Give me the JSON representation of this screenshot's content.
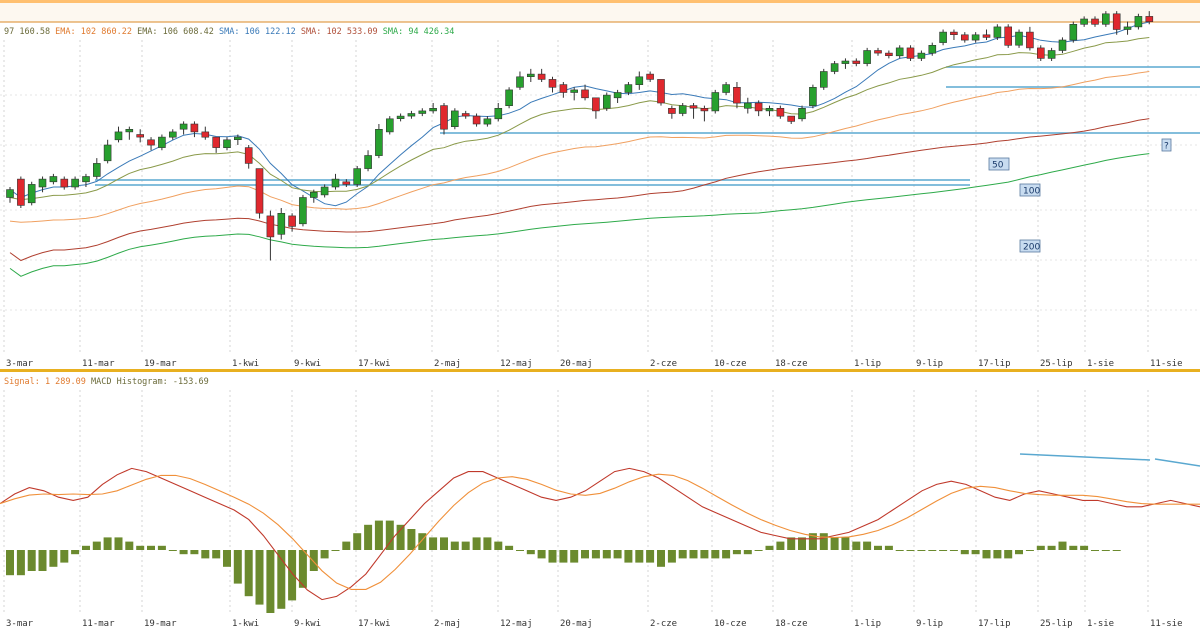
{
  "indicator_bar": {
    "items": [
      {
        "text": "97 160.58",
        "color": "#6b6b3a"
      },
      {
        "text": "EMA: 102 860.22",
        "color": "#e07a2e"
      },
      {
        "text": "EMA: 106 608.42",
        "color": "#6b6b3a"
      },
      {
        "text": "SMA: 106 122.12",
        "color": "#3a7ab8"
      },
      {
        "text": "SMA: 102 533.09",
        "color": "#b0503a"
      },
      {
        "text": "SMA: 94 426.34",
        "color": "#2eaa4a"
      }
    ]
  },
  "macd_bar": {
    "items": [
      {
        "text": "Signal: 1 289.09",
        "color": "#e07a2e"
      },
      {
        "text": "MACD Histogram: -153.69",
        "color": "#6b6b3a"
      }
    ]
  },
  "ma_labels": [
    "50",
    "100",
    "200",
    "?"
  ],
  "colors": {
    "up": "#27a02e",
    "down": "#e0282e",
    "resistance": "#5aa8d0",
    "histogram": "#6b8a2e",
    "macd": "#c0392b",
    "signal": "#f0903a",
    "ema_fast": "#f0a060",
    "ema_slow": "#8a9a4a",
    "sma_blue": "#3a7ab8",
    "sma_red": "#b04030",
    "sma_green": "#2eaa4a"
  },
  "chart_data": {
    "type": "candlestick",
    "x_ticks": [
      "3-mar",
      "11-mar",
      "19-mar",
      "1-kwi",
      "9-kwi",
      "17-kwi",
      "2-maj",
      "12-maj",
      "20-maj",
      "2-cze",
      "10-cze",
      "18-cze",
      "1-lip",
      "9-lip",
      "17-lip",
      "25-lip",
      "1-sie",
      "11-sie"
    ],
    "y_range": [
      60,
      180
    ],
    "candles": [
      [
        120,
        124,
        118,
        123
      ],
      [
        127,
        128,
        116,
        117
      ],
      [
        118,
        126,
        117,
        125
      ],
      [
        124,
        128,
        122,
        127
      ],
      [
        126,
        129,
        125,
        128
      ],
      [
        127,
        128,
        123,
        124
      ],
      [
        124,
        128,
        123,
        127
      ],
      [
        126,
        129,
        124,
        128
      ],
      [
        128,
        135,
        127,
        133
      ],
      [
        134,
        142,
        133,
        140
      ],
      [
        142,
        147,
        141,
        145
      ],
      [
        145,
        147,
        142,
        146
      ],
      [
        144,
        146,
        141,
        143
      ],
      [
        142,
        143,
        138,
        140
      ],
      [
        139,
        144,
        138,
        143
      ],
      [
        143,
        146,
        142,
        145
      ],
      [
        146,
        149,
        144,
        148
      ],
      [
        148,
        149,
        143,
        145
      ],
      [
        145,
        147,
        142,
        143
      ],
      [
        143,
        143,
        137,
        139
      ],
      [
        139,
        143,
        138,
        142
      ],
      [
        142,
        144,
        140,
        143
      ],
      [
        139,
        140,
        131,
        133
      ],
      [
        131,
        131,
        112,
        114
      ],
      [
        113,
        115,
        96,
        105
      ],
      [
        106,
        116,
        104,
        114
      ],
      [
        113,
        114,
        107,
        109
      ],
      [
        110,
        121,
        109,
        120
      ],
      [
        120,
        123,
        118,
        122
      ],
      [
        121,
        125,
        120,
        124
      ],
      [
        124,
        129,
        123,
        127
      ],
      [
        126,
        127,
        124,
        125
      ],
      [
        125,
        132,
        124,
        131
      ],
      [
        131,
        138,
        130,
        136
      ],
      [
        136,
        148,
        135,
        146
      ],
      [
        145,
        151,
        144,
        150
      ],
      [
        150,
        152,
        149,
        151
      ],
      [
        151,
        153,
        150,
        152
      ],
      [
        152,
        154,
        151,
        153
      ],
      [
        153,
        156,
        152,
        154
      ],
      [
        155,
        156,
        144,
        146
      ],
      [
        147,
        154,
        146,
        153
      ],
      [
        152,
        153,
        150,
        151
      ],
      [
        151,
        152,
        147,
        148
      ],
      [
        148,
        151,
        147,
        150
      ],
      [
        150,
        156,
        149,
        154
      ],
      [
        155,
        162,
        154,
        161
      ],
      [
        162,
        168,
        161,
        166
      ],
      [
        166,
        169,
        164,
        167
      ],
      [
        167,
        169,
        164,
        165
      ],
      [
        165,
        166,
        160,
        162
      ],
      [
        163,
        164,
        158,
        160
      ],
      [
        160,
        162,
        157,
        161
      ],
      [
        161,
        163,
        157,
        158
      ],
      [
        158,
        158,
        150,
        153
      ],
      [
        154,
        160,
        153,
        159
      ],
      [
        158,
        161,
        156,
        160
      ],
      [
        160,
        164,
        159,
        163
      ],
      [
        163,
        168,
        161,
        166
      ],
      [
        167,
        168,
        164,
        165
      ],
      [
        165,
        165,
        155,
        156
      ],
      [
        154,
        155,
        150,
        152
      ],
      [
        152,
        156,
        151,
        155
      ],
      [
        155,
        156,
        150,
        154
      ],
      [
        154,
        155,
        149,
        153
      ],
      [
        153,
        161,
        152,
        160
      ],
      [
        160,
        164,
        159,
        163
      ],
      [
        162,
        164,
        154,
        156
      ],
      [
        154,
        158,
        152,
        156
      ],
      [
        156,
        157,
        151,
        153
      ],
      [
        153,
        155,
        151,
        154
      ],
      [
        154,
        155,
        150,
        151
      ],
      [
        151,
        151,
        148,
        149
      ],
      [
        150,
        155,
        149,
        154
      ],
      [
        155,
        163,
        154,
        162
      ],
      [
        162,
        169,
        161,
        168
      ],
      [
        168,
        172,
        167,
        171
      ],
      [
        171,
        173,
        169,
        172
      ],
      [
        172,
        173,
        170,
        171
      ],
      [
        171,
        177,
        170,
        176
      ],
      [
        176,
        177,
        174,
        175
      ],
      [
        175,
        176,
        173,
        174
      ],
      [
        174,
        178,
        173,
        177
      ],
      [
        177,
        178,
        172,
        173
      ],
      [
        173,
        176,
        172,
        175
      ],
      [
        175,
        179,
        174,
        178
      ],
      [
        179,
        184,
        178,
        183
      ],
      [
        183,
        184,
        180,
        182
      ],
      [
        182,
        183,
        179,
        180
      ],
      [
        180,
        183,
        179,
        182
      ],
      [
        182,
        184,
        180,
        181
      ],
      [
        181,
        186,
        180,
        185
      ],
      [
        185,
        186,
        177,
        178
      ],
      [
        178,
        184,
        177,
        183
      ],
      [
        183,
        185,
        176,
        177
      ],
      [
        177,
        178,
        172,
        173
      ],
      [
        173,
        177,
        172,
        176
      ],
      [
        176,
        181,
        175,
        180
      ],
      [
        180,
        187,
        179,
        186
      ],
      [
        186,
        189,
        185,
        188
      ],
      [
        188,
        189,
        185,
        186
      ],
      [
        186,
        191,
        185,
        190
      ],
      [
        190,
        191,
        182,
        184
      ],
      [
        184,
        187,
        182,
        185
      ],
      [
        185,
        190,
        184,
        189
      ],
      [
        189,
        191,
        186,
        187
      ]
    ],
    "macd_range": [
      -10,
      10
    ]
  }
}
